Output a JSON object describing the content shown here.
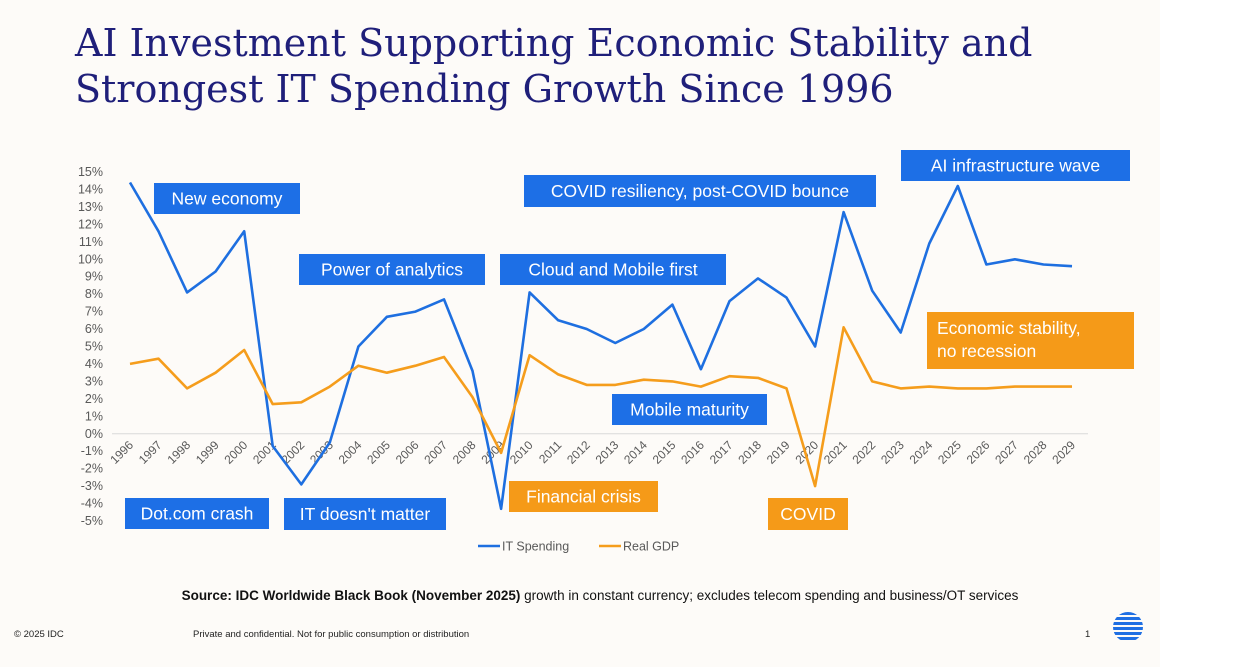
{
  "title": "AI Investment Supporting Economic Stability and Strongest IT Spending Growth Since 1996",
  "title_lines": [
    "AI Investment Supporting Economic Stability and",
    "Strongest IT Spending Growth Since 1996"
  ],
  "source": {
    "bold": "Source: IDC Worldwide Black Book (November 2025)",
    "rest": " growth in constant currency; excludes telecom spending and business/OT services"
  },
  "footer": {
    "copyright": "© 2025 IDC",
    "confidential": "Private and confidential. Not for public consumption or distribution",
    "page": "1"
  },
  "colors": {
    "title": "#1f1f7a",
    "it_spending": "#1e6fe0",
    "real_gdp": "#f59d1c",
    "blue_label": "#1d6fe6",
    "orange_label": "#f59a18",
    "axis_text": "#595959"
  },
  "chart_data": {
    "type": "line",
    "title": "",
    "xlabel": "",
    "ylabel": "",
    "ylim": [
      -5,
      15
    ],
    "ytick_step": 1,
    "grid": false,
    "legend": "bottom-center",
    "x": [
      "1996",
      "1997",
      "1998",
      "1999",
      "2000",
      "2001",
      "2002",
      "2003",
      "2004",
      "2005",
      "2006",
      "2007",
      "2008",
      "2009",
      "2010",
      "2011",
      "2012",
      "2013",
      "2014",
      "2015",
      "2016",
      "2017",
      "2018",
      "2019",
      "2020",
      "2021",
      "2022",
      "2023",
      "2024",
      "2025",
      "2026",
      "2027",
      "2028",
      "2029"
    ],
    "series": [
      {
        "name": "IT Spending",
        "color": "#1e6fe0",
        "values": [
          14.4,
          11.6,
          8.1,
          9.3,
          11.6,
          -0.7,
          -2.9,
          -0.5,
          5.0,
          6.7,
          7.0,
          7.7,
          3.6,
          -4.3,
          8.1,
          6.5,
          6.0,
          5.2,
          6.0,
          7.4,
          3.7,
          7.6,
          8.9,
          7.8,
          5.0,
          12.7,
          8.2,
          5.8,
          10.9,
          14.2,
          9.7,
          10.0,
          9.7,
          9.6
        ]
      },
      {
        "name": "Real GDP",
        "color": "#f59d1c",
        "values": [
          4.0,
          4.3,
          2.6,
          3.5,
          4.8,
          1.7,
          1.8,
          2.7,
          3.9,
          3.5,
          3.9,
          4.4,
          2.1,
          -1.1,
          4.5,
          3.4,
          2.8,
          2.8,
          3.1,
          3.0,
          2.7,
          3.3,
          3.2,
          2.6,
          -3.0,
          6.1,
          3.0,
          2.6,
          2.7,
          2.6,
          2.6,
          2.7,
          2.7,
          2.7
        ]
      }
    ],
    "annotations": [
      {
        "text": "New economy",
        "style": "blue"
      },
      {
        "text": "Power of analytics",
        "style": "blue"
      },
      {
        "text": "Cloud and Mobile first",
        "style": "blue"
      },
      {
        "text": "COVID resiliency, post-COVID bounce",
        "style": "blue"
      },
      {
        "text": "AI infrastructure wave",
        "style": "blue"
      },
      {
        "text": "Mobile maturity",
        "style": "blue"
      },
      {
        "text": "Dot.com crash",
        "style": "blue"
      },
      {
        "text": "IT doesn't matter",
        "style": "blue"
      },
      {
        "text": "Financial crisis",
        "style": "orange"
      },
      {
        "text": "COVID",
        "style": "orange"
      },
      {
        "text": "Economic stability,\nno recession",
        "style": "orange"
      }
    ]
  }
}
